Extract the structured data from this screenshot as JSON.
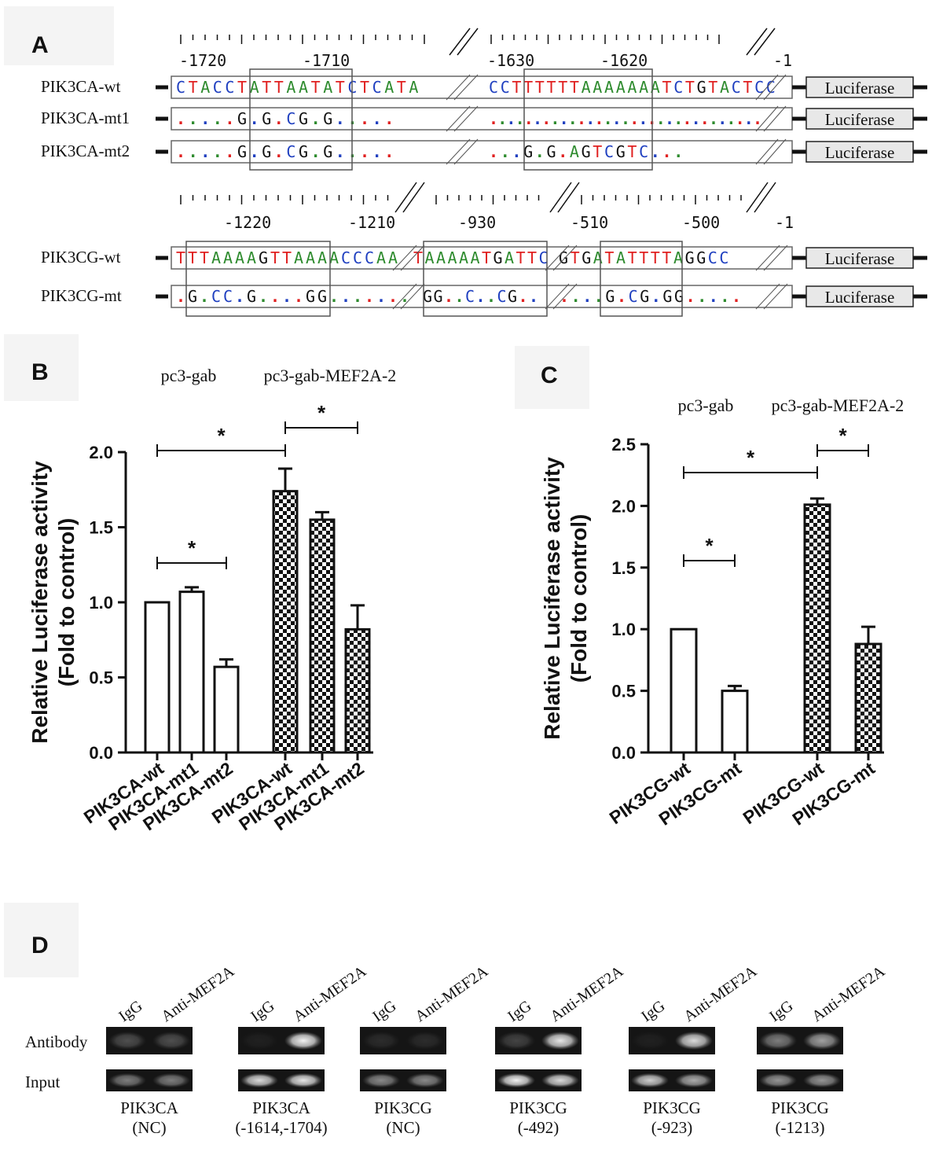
{
  "panels": {
    "a": "A",
    "b": "B",
    "c": "C",
    "d": "D"
  },
  "panel_a": {
    "ruler_top": [
      "-1720",
      "-1710",
      "-1630",
      "-1620",
      "-1"
    ],
    "ruler_bottom": [
      "-1220",
      "-1210",
      "-930",
      "-510",
      "-500",
      "-1"
    ],
    "luciferase_label": "Luciferase",
    "constructs": [
      {
        "name": "PIK3CA-wt",
        "seq1": "CTACCTATTAATATCTCATA",
        "seq2": "CCTTTTTTAAAAAAATCTGTACTCC"
      },
      {
        "name": "PIK3CA-mt1",
        "seq1": ".....G.G.CG.G.....",
        "seq2": "..............................."
      },
      {
        "name": "PIK3CA-mt2",
        "seq1": ".....G.G.CG.G.....",
        "seq2": "...G.G.AGTCGTC..."
      },
      {
        "name": "PIK3CG-wt",
        "seq1": "TTTAAAAGTTAAAACCCAA",
        "seq2": "TAAAAATGATTC",
        "seq3": "GTGATATTTTAGGCC"
      },
      {
        "name": "PIK3CG-mt",
        "seq1": ".G.CC.G....GG.......",
        "seq2": "GG..C..CG..",
        "seq3": "....G.CG.GG....."
      }
    ]
  },
  "chart_data": [
    {
      "type": "bar",
      "panel": "B",
      "groups": [
        "pc3-gab",
        "pc3-gab-MEF2A-2"
      ],
      "categories": [
        "PIK3CA-wt",
        "PIK3CA-mt1",
        "PIK3CA-mt2",
        "PIK3CA-wt",
        "PIK3CA-mt1",
        "PIK3CA-mt2"
      ],
      "values": [
        1.0,
        1.07,
        0.57,
        1.74,
        1.55,
        0.82
      ],
      "errors": [
        0.0,
        0.03,
        0.05,
        0.15,
        0.05,
        0.16
      ],
      "fill": [
        "white",
        "white",
        "white",
        "checker",
        "checker",
        "checker"
      ],
      "ylabel_line1": "Relative Luciferase activity",
      "ylabel_line2": "(Fold to control)",
      "ylim": [
        0,
        2.0
      ],
      "yticks": [
        "0.0",
        "0.5",
        "1.0",
        "1.5",
        "2.0"
      ],
      "significance": [
        {
          "from": 0,
          "to": 2,
          "label": "*"
        },
        {
          "from": 0,
          "to": 3,
          "label": "*"
        },
        {
          "from": 3,
          "to": 5,
          "label": "*"
        }
      ]
    },
    {
      "type": "bar",
      "panel": "C",
      "groups": [
        "pc3-gab",
        "pc3-gab-MEF2A-2"
      ],
      "categories": [
        "PIK3CG-wt",
        "PIK3CG-mt",
        "PIK3CG-wt",
        "PIK3CG-mt"
      ],
      "values": [
        1.0,
        0.5,
        2.01,
        0.88
      ],
      "errors": [
        0.0,
        0.04,
        0.05,
        0.14
      ],
      "fill": [
        "white",
        "white",
        "checker",
        "checker"
      ],
      "ylabel_line1": "Relative Luciferase activity",
      "ylabel_line2": "(Fold to control)",
      "ylim": [
        0,
        2.5
      ],
      "yticks": [
        "0.0",
        "0.5",
        "1.0",
        "1.5",
        "2.0",
        "2.5"
      ],
      "significance": [
        {
          "from": 0,
          "to": 1,
          "label": "*"
        },
        {
          "from": 0,
          "to": 2,
          "label": "*"
        },
        {
          "from": 2,
          "to": 3,
          "label": "*"
        }
      ]
    }
  ],
  "panel_d": {
    "lane_labels": [
      "IgG",
      "Anti-MEF2A"
    ],
    "row_labels": [
      "Antibody",
      "Input"
    ],
    "gels": [
      {
        "name": "PIK3CA",
        "sub": "(NC)",
        "ab": [
          0.25,
          0.25
        ],
        "input": [
          0.45,
          0.45
        ]
      },
      {
        "name": "PIK3CA",
        "sub": "(-1614,-1704)",
        "ab": [
          0.05,
          0.95
        ],
        "input": [
          0.85,
          0.9
        ]
      },
      {
        "name": "PIK3CG",
        "sub": "(NC)",
        "ab": [
          0.1,
          0.1
        ],
        "input": [
          0.5,
          0.5
        ]
      },
      {
        "name": "PIK3CG",
        "sub": "(-492)",
        "ab": [
          0.2,
          0.9
        ],
        "input": [
          0.95,
          0.85
        ]
      },
      {
        "name": "PIK3CG",
        "sub": "(-923)",
        "ab": [
          0.05,
          0.85
        ],
        "input": [
          0.8,
          0.65
        ]
      },
      {
        "name": "PIK3CG",
        "sub": "(-1213)",
        "ab": [
          0.45,
          0.6
        ],
        "input": [
          0.55,
          0.55
        ]
      }
    ]
  }
}
